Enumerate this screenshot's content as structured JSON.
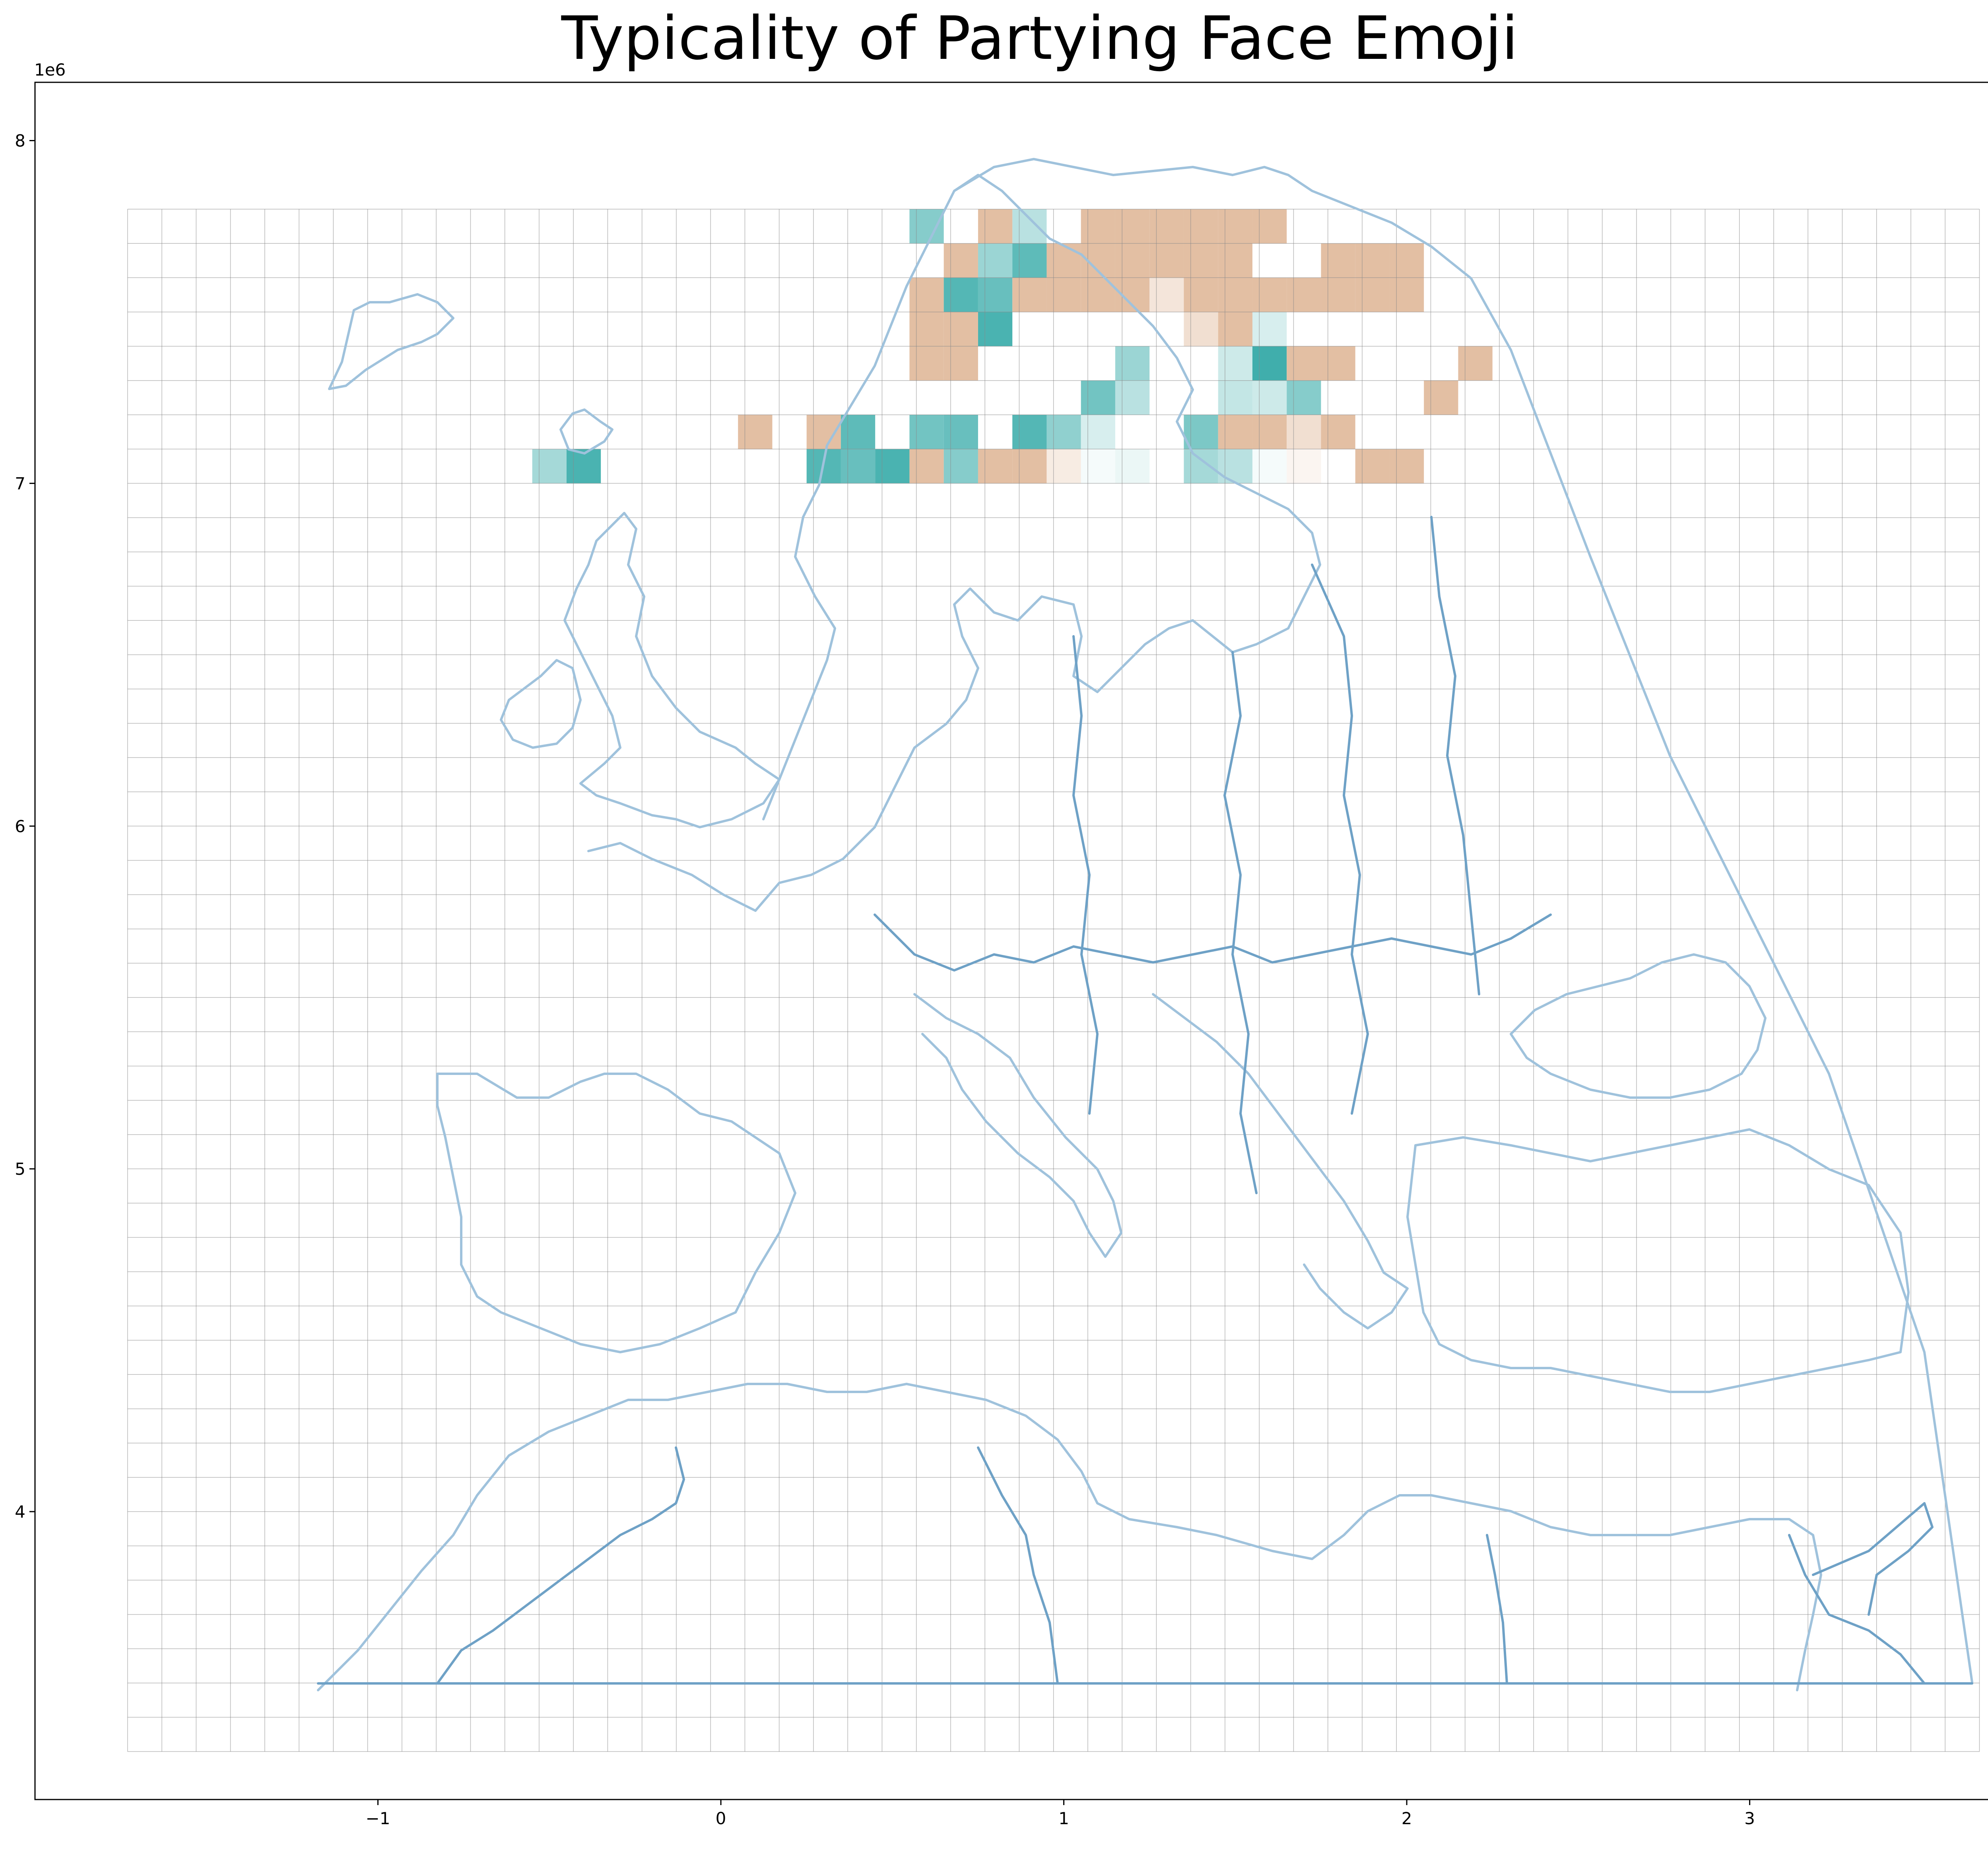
{
  "chart_data": {
    "type": "heatmap",
    "title": "Typicality of Partying Face Emoji",
    "xlabel": "",
    "ylabel": "",
    "x_offset_label": "1e6",
    "y_offset_label": "1e6",
    "xlim": [
      -2.0,
      3.87
    ],
    "ylim": [
      3.16,
      8.17
    ],
    "xticks": [
      -1,
      0,
      1,
      2,
      3
    ],
    "yticks": [
      4,
      5,
      6,
      7,
      8
    ],
    "xtick_labels": [
      "−1",
      "0",
      "1",
      "2",
      "3"
    ],
    "ytick_labels": [
      "4",
      "5",
      "6",
      "7",
      "8"
    ],
    "grid": {
      "x0": -1.73,
      "y0": 3.3,
      "cell": 0.1,
      "cols": 54,
      "rows": 45
    },
    "legend": "none",
    "colors": {
      "high": "#36aaa8",
      "low": "#e3bfa3",
      "neutral": "#ffffff",
      "gridline": "#888888",
      "coast": "#9fc2dc",
      "border": "#6ea1c6"
    },
    "cells": [
      {
        "x": 0.6,
        "y": 7.75,
        "v": 0.6
      },
      {
        "x": 0.9,
        "y": 7.75,
        "v": 0.35
      },
      {
        "x": 0.8,
        "y": 7.75,
        "v": -1
      },
      {
        "x": 1.1,
        "y": 7.75,
        "v": -1
      },
      {
        "x": 1.2,
        "y": 7.75,
        "v": -1
      },
      {
        "x": 1.3,
        "y": 7.75,
        "v": -1
      },
      {
        "x": 1.4,
        "y": 7.75,
        "v": -1
      },
      {
        "x": 1.5,
        "y": 7.75,
        "v": -1
      },
      {
        "x": 1.6,
        "y": 7.75,
        "v": -1
      },
      {
        "x": 0.7,
        "y": 7.65,
        "v": -1
      },
      {
        "x": 0.8,
        "y": 7.65,
        "v": 0.5
      },
      {
        "x": 0.9,
        "y": 7.65,
        "v": 0.8
      },
      {
        "x": 1.0,
        "y": 7.65,
        "v": -1
      },
      {
        "x": 1.1,
        "y": 7.65,
        "v": -1
      },
      {
        "x": 1.2,
        "y": 7.65,
        "v": -1
      },
      {
        "x": 1.3,
        "y": 7.65,
        "v": -1
      },
      {
        "x": 1.4,
        "y": 7.65,
        "v": -1
      },
      {
        "x": 1.5,
        "y": 7.65,
        "v": -1
      },
      {
        "x": 1.8,
        "y": 7.65,
        "v": -1
      },
      {
        "x": 1.9,
        "y": 7.65,
        "v": -1
      },
      {
        "x": 2.0,
        "y": 7.65,
        "v": -1
      },
      {
        "x": 0.6,
        "y": 7.55,
        "v": -1
      },
      {
        "x": 0.7,
        "y": 7.55,
        "v": 0.85
      },
      {
        "x": 0.8,
        "y": 7.55,
        "v": 0.75
      },
      {
        "x": 0.9,
        "y": 7.55,
        "v": -1
      },
      {
        "x": 1.0,
        "y": 7.55,
        "v": -1
      },
      {
        "x": 1.1,
        "y": 7.55,
        "v": -1
      },
      {
        "x": 1.2,
        "y": 7.55,
        "v": -1
      },
      {
        "x": 1.3,
        "y": 7.55,
        "v": -0.4
      },
      {
        "x": 1.4,
        "y": 7.55,
        "v": -1
      },
      {
        "x": 1.5,
        "y": 7.55,
        "v": -1
      },
      {
        "x": 1.6,
        "y": 7.55,
        "v": -1
      },
      {
        "x": 1.7,
        "y": 7.55,
        "v": -1
      },
      {
        "x": 1.8,
        "y": 7.55,
        "v": -1
      },
      {
        "x": 1.9,
        "y": 7.55,
        "v": -1
      },
      {
        "x": 2.0,
        "y": 7.55,
        "v": -1
      },
      {
        "x": 0.6,
        "y": 7.45,
        "v": -1
      },
      {
        "x": 0.7,
        "y": 7.45,
        "v": -1
      },
      {
        "x": 0.8,
        "y": 7.45,
        "v": 0.9
      },
      {
        "x": 1.4,
        "y": 7.45,
        "v": -0.5
      },
      {
        "x": 1.6,
        "y": 7.45,
        "v": 0.2
      },
      {
        "x": 1.5,
        "y": 7.45,
        "v": -1
      },
      {
        "x": 0.6,
        "y": 7.35,
        "v": -1
      },
      {
        "x": 0.7,
        "y": 7.35,
        "v": -1
      },
      {
        "x": 1.2,
        "y": 7.35,
        "v": 0.5
      },
      {
        "x": 1.5,
        "y": 7.35,
        "v": 0.25
      },
      {
        "x": 1.6,
        "y": 7.35,
        "v": 0.95
      },
      {
        "x": 1.7,
        "y": 7.35,
        "v": -1
      },
      {
        "x": 1.8,
        "y": 7.35,
        "v": -1
      },
      {
        "x": 2.2,
        "y": 7.35,
        "v": -1
      },
      {
        "x": 1.1,
        "y": 7.25,
        "v": 0.7
      },
      {
        "x": 1.2,
        "y": 7.25,
        "v": 0.35
      },
      {
        "x": 1.5,
        "y": 7.25,
        "v": 0.3
      },
      {
        "x": 1.6,
        "y": 7.25,
        "v": 0.25
      },
      {
        "x": 1.7,
        "y": 7.25,
        "v": 0.6
      },
      {
        "x": 2.1,
        "y": 7.25,
        "v": -1
      },
      {
        "x": 0.1,
        "y": 7.15,
        "v": -1
      },
      {
        "x": 0.3,
        "y": 7.15,
        "v": -1
      },
      {
        "x": 0.4,
        "y": 7.15,
        "v": 0.8
      },
      {
        "x": 0.6,
        "y": 7.15,
        "v": 0.7
      },
      {
        "x": 0.7,
        "y": 7.15,
        "v": 0.75
      },
      {
        "x": 0.9,
        "y": 7.15,
        "v": 0.85
      },
      {
        "x": 1.0,
        "y": 7.15,
        "v": 0.55
      },
      {
        "x": 1.1,
        "y": 7.15,
        "v": 0.2
      },
      {
        "x": 1.4,
        "y": 7.15,
        "v": 0.65
      },
      {
        "x": 1.5,
        "y": 7.15,
        "v": -1
      },
      {
        "x": 1.6,
        "y": 7.15,
        "v": -1
      },
      {
        "x": 1.7,
        "y": 7.15,
        "v": -0.5
      },
      {
        "x": 1.8,
        "y": 7.15,
        "v": -1
      },
      {
        "x": -0.5,
        "y": 7.05,
        "v": 0.45
      },
      {
        "x": -0.4,
        "y": 7.05,
        "v": 0.9
      },
      {
        "x": 0.3,
        "y": 7.05,
        "v": 0.85
      },
      {
        "x": 0.4,
        "y": 7.05,
        "v": 0.75
      },
      {
        "x": 0.5,
        "y": 7.05,
        "v": 0.9
      },
      {
        "x": 0.6,
        "y": 7.05,
        "v": -1
      },
      {
        "x": 0.7,
        "y": 7.05,
        "v": 0.6
      },
      {
        "x": 0.8,
        "y": 7.05,
        "v": -1
      },
      {
        "x": 0.9,
        "y": 7.05,
        "v": -1
      },
      {
        "x": 1.0,
        "y": 7.05,
        "v": -0.3
      },
      {
        "x": 1.1,
        "y": 7.05,
        "v": 0.05
      },
      {
        "x": 1.2,
        "y": 7.05,
        "v": 0.1
      },
      {
        "x": 1.4,
        "y": 7.05,
        "v": 0.45
      },
      {
        "x": 1.5,
        "y": 7.05,
        "v": 0.35
      },
      {
        "x": 1.6,
        "y": 7.05,
        "v": 0.05
      },
      {
        "x": 1.7,
        "y": 7.05,
        "v": -0.15
      },
      {
        "x": 1.9,
        "y": 7.05,
        "v": -1
      },
      {
        "x": 2.0,
        "y": 7.05,
        "v": -1
      }
    ]
  }
}
